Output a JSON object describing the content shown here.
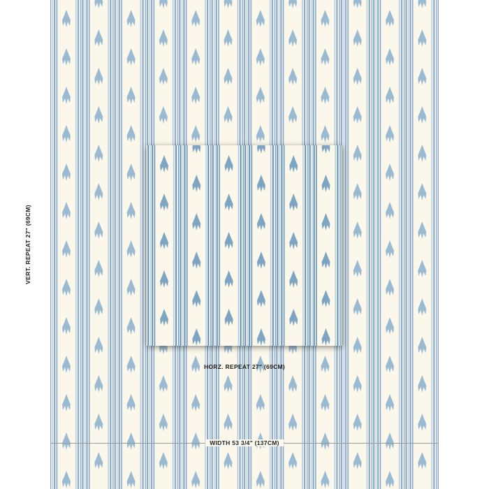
{
  "labels": {
    "vertical_repeat": "VERT. REPEAT  27\" (69CM)",
    "horizontal_repeat": "HORZ. REPEAT 27\" (69CM)",
    "width": "WIDTH 53 3/4\" (137CM)"
  },
  "colors": {
    "ground": "#fbf7ea",
    "stripe": "#7fa5cc",
    "stripe_light": "#b3cbe2",
    "motif": "#8fb4d0",
    "swatch_stripe": "#5f90b8",
    "swatch_motif": "#6f9dbd"
  }
}
